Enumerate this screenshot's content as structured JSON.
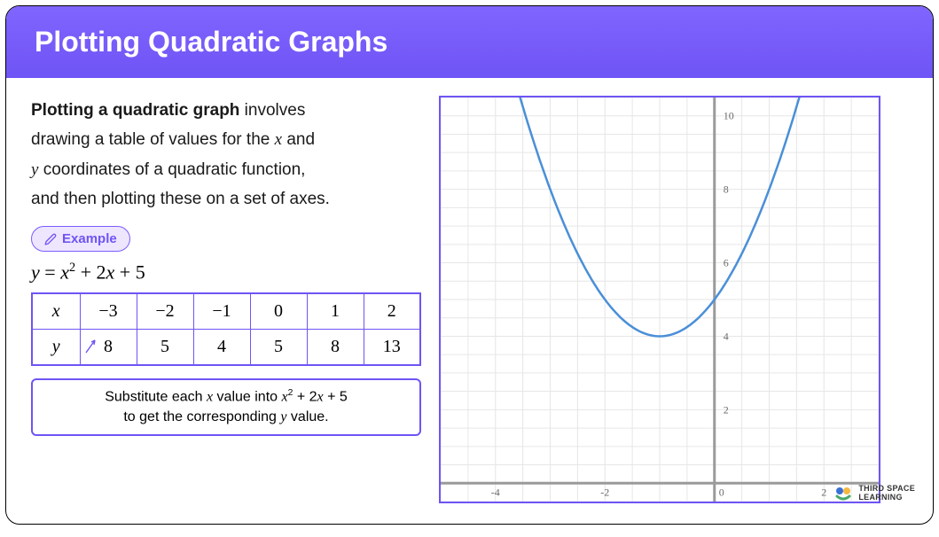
{
  "header": {
    "title": "Plotting Quadratic Graphs"
  },
  "intro": {
    "bold_lead": "Plotting a quadratic graph",
    "line1_rest": " involves",
    "line2a": "drawing a table of values for the ",
    "var_x": "x",
    "line2b": " and",
    "var_y": "y",
    "line3": " coordinates of a quadratic function,",
    "line4": "and then plotting these on a set of axes."
  },
  "example_badge": {
    "label": "Example"
  },
  "equation": {
    "lhs": "y",
    "eq": " = ",
    "term1_base": "x",
    "term1_exp": "2",
    "plus1": " + 2",
    "term2": "x",
    "plus2": " + 5"
  },
  "table": {
    "row_x_label": "x",
    "row_y_label": "y",
    "x_values": [
      "−3",
      "−2",
      "−1",
      "0",
      "1",
      "2"
    ],
    "y_values": [
      "8",
      "5",
      "4",
      "5",
      "8",
      "13"
    ]
  },
  "callout": {
    "line1a": "Substitute each ",
    "var_x": "x",
    "line1b": " value into ",
    "expr_base": "x",
    "expr_exp": "2",
    "expr_rest1": " + 2",
    "expr_var2": "x",
    "expr_rest2": " + 5",
    "line2a": "to get the corresponding ",
    "var_y": "y",
    "line2b": " value."
  },
  "chart": {
    "type": "line",
    "xlim": [
      -5,
      3
    ],
    "ylim": [
      -0.5,
      10.5
    ],
    "xtick_step": 2,
    "ytick_step": 2,
    "x_ticks": [
      -4,
      -2,
      0,
      2
    ],
    "y_ticks": [
      2,
      4,
      6,
      8,
      10
    ],
    "grid_minor": 0.5,
    "background_color": "#ffffff",
    "grid_color": "#e6e6e6",
    "axis_color": "#9a9a9a",
    "curve_color": "#4a8fd8",
    "curve_width": 2.5,
    "tick_label_color": "#6a6a6a",
    "tick_label_fontsize": 12,
    "series_x": [
      -4.2,
      -4,
      -3.5,
      -3,
      -2.5,
      -2,
      -1.5,
      -1,
      -0.5,
      0,
      0.5,
      1,
      1.5,
      2,
      2.2
    ],
    "series_y": [
      14.24,
      13,
      10.25,
      8,
      6.25,
      5,
      4.25,
      4,
      4.25,
      5,
      6.25,
      8,
      10.25,
      13,
      14.24
    ]
  },
  "logo": {
    "line1": "THIRD SPACE",
    "line2": "LEARNING",
    "dot_colors": [
      "#3a6fd8",
      "#4aa86a",
      "#f5b942"
    ]
  },
  "colors": {
    "header_bg": "#7c5cff",
    "border": "#6f54f5",
    "badge_bg": "#eee6ff"
  }
}
